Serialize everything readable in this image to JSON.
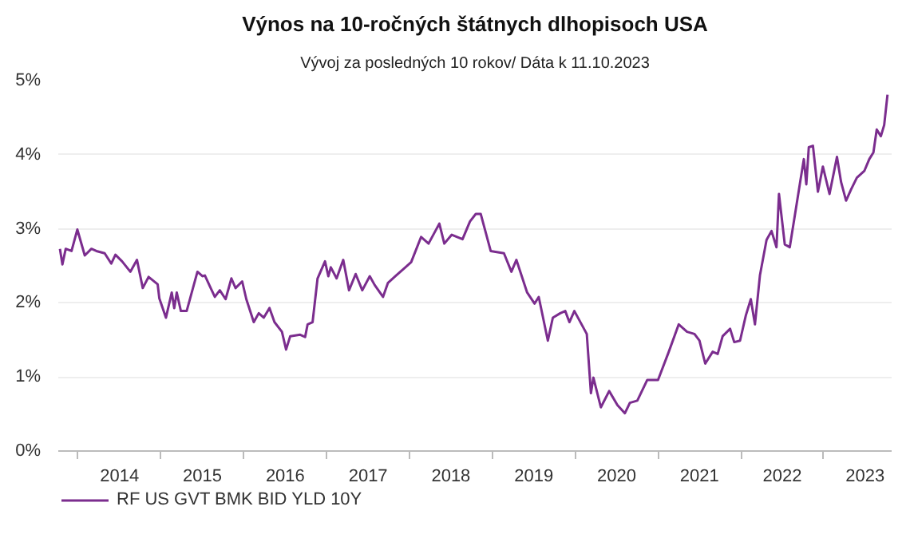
{
  "chart_data": {
    "type": "line",
    "title": "Výnos na 10-ročných štátnych dlhopisoch USA",
    "subtitle": "Vývoj za posledných 10 rokov/ Dáta k 11.10.2023",
    "legend": "bottom",
    "grid": "y",
    "line_style": "solid",
    "xlim": [
      2013.76,
      2023.82
    ],
    "ylim": [
      0,
      5
    ],
    "yticks": [
      {
        "value": 0,
        "label": "0%"
      },
      {
        "value": 1,
        "label": "1%"
      },
      {
        "value": 2,
        "label": "2%"
      },
      {
        "value": 3,
        "label": "3%"
      },
      {
        "value": 4,
        "label": "4%"
      },
      {
        "value": 5,
        "label": "5%"
      }
    ],
    "xticks": [
      {
        "value": 2014,
        "label": null
      },
      {
        "value": 2014.5,
        "label": "2014"
      },
      {
        "value": 2015,
        "label": null
      },
      {
        "value": 2015.5,
        "label": "2015"
      },
      {
        "value": 2016,
        "label": null
      },
      {
        "value": 2016.5,
        "label": "2016"
      },
      {
        "value": 2017,
        "label": null
      },
      {
        "value": 2017.5,
        "label": "2017"
      },
      {
        "value": 2018,
        "label": null
      },
      {
        "value": 2018.5,
        "label": "2018"
      },
      {
        "value": 2019,
        "label": null
      },
      {
        "value": 2019.5,
        "label": "2019"
      },
      {
        "value": 2020,
        "label": null
      },
      {
        "value": 2020.5,
        "label": "2020"
      },
      {
        "value": 2021,
        "label": null
      },
      {
        "value": 2021.5,
        "label": "2021"
      },
      {
        "value": 2022,
        "label": null
      },
      {
        "value": 2022.5,
        "label": "2022"
      },
      {
        "value": 2023,
        "label": null
      },
      {
        "value": 2023.5,
        "label": "2023"
      }
    ],
    "series": [
      {
        "name": "RF US GVT BMK BID YLD 10Y",
        "color": "#7b2d8e",
        "x": [
          2013.78,
          2013.81,
          2013.85,
          2013.92,
          2013.99,
          2014.08,
          2014.16,
          2014.22,
          2014.32,
          2014.4,
          2014.45,
          2014.53,
          2014.63,
          2014.71,
          2014.78,
          2014.85,
          2014.96,
          2014.98,
          2015.06,
          2015.13,
          2015.16,
          2015.19,
          2015.24,
          2015.31,
          2015.44,
          2015.5,
          2015.53,
          2015.6,
          2015.65,
          2015.71,
          2015.78,
          2015.85,
          2015.9,
          2015.98,
          2016.03,
          2016.12,
          2016.18,
          2016.24,
          2016.31,
          2016.37,
          2016.46,
          2016.51,
          2016.56,
          2016.68,
          2016.74,
          2016.77,
          2016.83,
          2016.89,
          2016.98,
          2017.02,
          2017.05,
          2017.12,
          2017.2,
          2017.27,
          2017.35,
          2017.43,
          2017.52,
          2017.58,
          2017.68,
          2017.74,
          2017.83,
          2017.89,
          2018.02,
          2018.14,
          2018.23,
          2018.36,
          2018.42,
          2018.51,
          2018.64,
          2018.73,
          2018.8,
          2018.86,
          2018.98,
          2019.14,
          2019.23,
          2019.29,
          2019.42,
          2019.51,
          2019.56,
          2019.67,
          2019.73,
          2019.82,
          2019.88,
          2019.93,
          2019.99,
          2020.14,
          2020.19,
          2020.22,
          2020.31,
          2020.41,
          2020.51,
          2020.6,
          2020.66,
          2020.75,
          2020.87,
          2021.0,
          2021.13,
          2021.25,
          2021.35,
          2021.44,
          2021.5,
          2021.57,
          2021.66,
          2021.72,
          2021.78,
          2021.87,
          2021.92,
          2021.99,
          2022.06,
          2022.12,
          2022.17,
          2022.23,
          2022.31,
          2022.37,
          2022.43,
          2022.46,
          2022.53,
          2022.59,
          2022.71,
          2022.76,
          2022.79,
          2022.82,
          2022.87,
          2022.93,
          2022.99,
          2023.07,
          2023.16,
          2023.21,
          2023.27,
          2023.33,
          2023.4,
          2023.49,
          2023.55,
          2023.6,
          2023.64,
          2023.69,
          2023.73,
          2023.77
        ],
        "values": [
          2.73,
          2.52,
          2.73,
          2.7,
          2.99,
          2.64,
          2.73,
          2.7,
          2.67,
          2.53,
          2.65,
          2.56,
          2.42,
          2.58,
          2.2,
          2.35,
          2.25,
          2.06,
          1.8,
          2.14,
          1.93,
          2.14,
          1.89,
          1.89,
          2.42,
          2.36,
          2.37,
          2.2,
          2.08,
          2.17,
          2.05,
          2.33,
          2.2,
          2.29,
          2.05,
          1.74,
          1.86,
          1.8,
          1.93,
          1.74,
          1.61,
          1.37,
          1.55,
          1.57,
          1.54,
          1.71,
          1.74,
          2.33,
          2.56,
          2.36,
          2.48,
          2.33,
          2.58,
          2.17,
          2.39,
          2.17,
          2.36,
          2.24,
          2.08,
          2.27,
          2.36,
          2.42,
          2.55,
          2.89,
          2.8,
          3.07,
          2.8,
          2.92,
          2.86,
          3.1,
          3.2,
          3.2,
          2.7,
          2.67,
          2.42,
          2.58,
          2.14,
          1.99,
          2.08,
          1.49,
          1.8,
          1.86,
          1.89,
          1.74,
          1.89,
          1.58,
          0.78,
          0.99,
          0.59,
          0.81,
          0.62,
          0.51,
          0.65,
          0.68,
          0.96,
          0.96,
          1.34,
          1.71,
          1.61,
          1.58,
          1.49,
          1.18,
          1.34,
          1.31,
          1.55,
          1.65,
          1.47,
          1.49,
          1.83,
          2.05,
          1.71,
          2.37,
          2.85,
          2.97,
          2.75,
          3.47,
          2.79,
          2.75,
          3.59,
          3.94,
          3.6,
          4.1,
          4.12,
          3.5,
          3.84,
          3.47,
          3.97,
          3.63,
          3.38,
          3.53,
          3.69,
          3.78,
          3.94,
          4.03,
          4.34,
          4.25,
          4.4,
          4.81
        ]
      }
    ]
  }
}
